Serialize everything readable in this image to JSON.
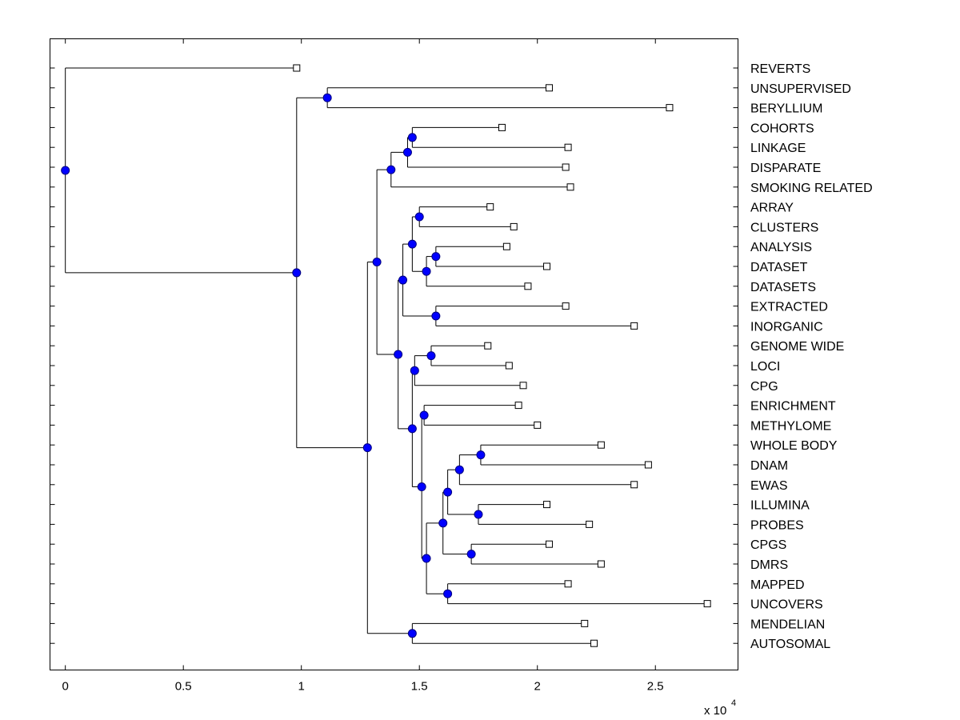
{
  "chart_data": {
    "type": "dendrogram",
    "title": "",
    "xlabel": "",
    "ylabel": "",
    "x_exponent_label": "x 10",
    "x_exponent_power": "4",
    "xlim": [
      -0.065,
      2.85
    ],
    "x_ticks": [
      {
        "value": 0,
        "label": "0"
      },
      {
        "value": 0.5,
        "label": "0.5"
      },
      {
        "value": 1,
        "label": "1"
      },
      {
        "value": 1.5,
        "label": "1.5"
      },
      {
        "value": 2,
        "label": "2"
      },
      {
        "value": 2.5,
        "label": "2.5"
      }
    ],
    "leaves": [
      {
        "label": "REVERTS",
        "value": 0.98
      },
      {
        "label": "UNSUPERVISED",
        "value": 2.05
      },
      {
        "label": "BERYLLIUM",
        "value": 2.56
      },
      {
        "label": "COHORTS",
        "value": 1.85
      },
      {
        "label": "LINKAGE",
        "value": 2.13
      },
      {
        "label": "DISPARATE",
        "value": 2.12
      },
      {
        "label": "SMOKING RELATED",
        "value": 2.14
      },
      {
        "label": "ARRAY",
        "value": 1.8
      },
      {
        "label": "CLUSTERS",
        "value": 1.9
      },
      {
        "label": "ANALYSIS",
        "value": 1.87
      },
      {
        "label": "DATASET",
        "value": 2.04
      },
      {
        "label": "DATASETS",
        "value": 1.96
      },
      {
        "label": "EXTRACTED",
        "value": 2.12
      },
      {
        "label": "INORGANIC",
        "value": 2.41
      },
      {
        "label": "GENOME WIDE",
        "value": 1.79
      },
      {
        "label": "LOCI",
        "value": 1.88
      },
      {
        "label": "CPG",
        "value": 1.94
      },
      {
        "label": "ENRICHMENT",
        "value": 1.92
      },
      {
        "label": "METHYLOME",
        "value": 2.0
      },
      {
        "label": "WHOLE BODY",
        "value": 2.27
      },
      {
        "label": "DNAM",
        "value": 2.47
      },
      {
        "label": "EWAS",
        "value": 2.41
      },
      {
        "label": "ILLUMINA",
        "value": 2.04
      },
      {
        "label": "PROBES",
        "value": 2.22
      },
      {
        "label": "CPGS",
        "value": 2.05
      },
      {
        "label": "DMRS",
        "value": 2.27
      },
      {
        "label": "MAPPED",
        "value": 2.13
      },
      {
        "label": "UNCOVERS",
        "value": 2.72
      },
      {
        "label": "MENDELIAN",
        "value": 2.2
      },
      {
        "label": "AUTOSOMAL",
        "value": 2.24
      }
    ],
    "nodes": [
      {
        "id": "n_unsup_bery",
        "value": 1.11,
        "children": [
          "L1",
          "L2"
        ]
      },
      {
        "id": "n_cohorts_linkage",
        "value": 1.47,
        "children": [
          "L3",
          "L4"
        ]
      },
      {
        "id": "n_cl_disparate",
        "value": 1.45,
        "children": [
          "n_cohorts_linkage",
          "L5"
        ]
      },
      {
        "id": "n_cld_smoking",
        "value": 1.38,
        "children": [
          "n_cl_disparate",
          "L6"
        ]
      },
      {
        "id": "n_array_clusters",
        "value": 1.5,
        "children": [
          "L7",
          "L8"
        ]
      },
      {
        "id": "n_analysis_dataset",
        "value": 1.57,
        "children": [
          "L9",
          "L10"
        ]
      },
      {
        "id": "n_ad_datasets",
        "value": 1.53,
        "children": [
          "n_analysis_dataset",
          "L11"
        ]
      },
      {
        "id": "n_ac_add",
        "value": 1.47,
        "children": [
          "n_array_clusters",
          "n_ad_datasets"
        ]
      },
      {
        "id": "n_extracted_inorganic",
        "value": 1.57,
        "children": [
          "L12",
          "L13"
        ]
      },
      {
        "id": "n_acadd_ei",
        "value": 1.43,
        "children": [
          "n_ac_add",
          "n_extracted_inorganic"
        ]
      },
      {
        "id": "n_genome_loci",
        "value": 1.55,
        "children": [
          "L14",
          "L15"
        ]
      },
      {
        "id": "n_gl_cpg",
        "value": 1.48,
        "children": [
          "n_genome_loci",
          "L16"
        ]
      },
      {
        "id": "n_enrich_methylome",
        "value": 1.52,
        "children": [
          "L17",
          "L18"
        ]
      },
      {
        "id": "n_wholebody_dnam",
        "value": 1.76,
        "children": [
          "L19",
          "L20"
        ]
      },
      {
        "id": "n_wd_ewas",
        "value": 1.67,
        "children": [
          "n_wholebody_dnam",
          "L21"
        ]
      },
      {
        "id": "n_illumina_probes",
        "value": 1.75,
        "children": [
          "L22",
          "L23"
        ]
      },
      {
        "id": "n_wde_ip",
        "value": 1.62,
        "children": [
          "n_wd_ewas",
          "n_illumina_probes"
        ]
      },
      {
        "id": "n_cpgs_dmrs",
        "value": 1.72,
        "children": [
          "L24",
          "L25"
        ]
      },
      {
        "id": "n_wdeip_cd",
        "value": 1.6,
        "children": [
          "n_wde_ip",
          "n_cpgs_dmrs"
        ]
      },
      {
        "id": "n_mapped_uncovers",
        "value": 1.62,
        "children": [
          "L26",
          "L27"
        ]
      },
      {
        "id": "n_wdeipcd_mu",
        "value": 1.53,
        "children": [
          "n_wdeip_cd",
          "n_mapped_uncovers"
        ]
      },
      {
        "id": "n_em_rest",
        "value": 1.51,
        "children": [
          "n_enrich_methylome",
          "n_wdeipcd_mu"
        ]
      },
      {
        "id": "n_glc_emrest",
        "value": 1.47,
        "children": [
          "n_gl_cpg",
          "n_em_rest"
        ]
      },
      {
        "id": "n_analysis_genome_groups",
        "value": 1.41,
        "children": [
          "n_acadd_ei",
          "n_glc_emrest"
        ]
      },
      {
        "id": "n_smoking_block_big",
        "value": 1.32,
        "children": [
          "n_cld_smoking",
          "n_analysis_genome_groups"
        ]
      },
      {
        "id": "n_mendelian_autosomal",
        "value": 1.47,
        "children": [
          "L28",
          "L29"
        ]
      },
      {
        "id": "n_big_mendel",
        "value": 1.28,
        "children": [
          "n_smoking_block_big",
          "n_mendelian_autosomal"
        ]
      },
      {
        "id": "n_ub_big",
        "value": 0.98,
        "children": [
          "n_unsup_bery",
          "n_big_mendel"
        ]
      },
      {
        "id": "n_root",
        "value": 0.0,
        "children": [
          "L0",
          "n_ub_big"
        ]
      }
    ],
    "colors": {
      "node_fill": "#0000ff",
      "node_stroke": "#000080",
      "line": "#000000",
      "background": "#ffffff"
    }
  }
}
